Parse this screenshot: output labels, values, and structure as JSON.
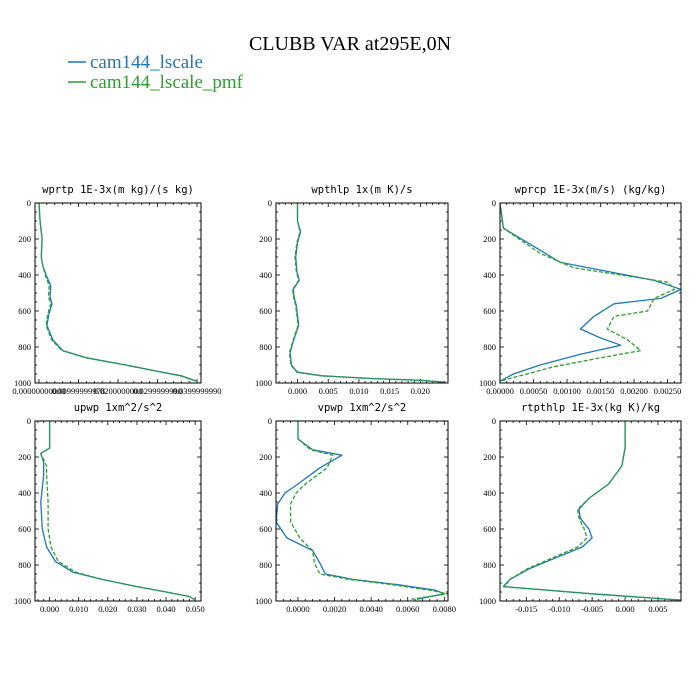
{
  "title": "CLUBB VAR at295E,0N",
  "legend": [
    {
      "label": "cam144_lscale",
      "color": "#1f77b4",
      "dash": "solid"
    },
    {
      "label": "cam144_lscale_pmf",
      "color": "#2ca02c",
      "dash": "dashed"
    }
  ],
  "chart_data": [
    {
      "type": "line",
      "title": "wprtp  1E-3x(m kg)/(s kg)",
      "xlim": [
        -0.001,
        0.041
      ],
      "ylim": [
        1000,
        0
      ],
      "xticks": [
        0,
        0.01,
        0.02,
        0.03,
        0.04
      ],
      "xticklabels": [
        "0.00000000000",
        "0.00999999978",
        "0.0200000000",
        "0.0299999990",
        "0.0399999990"
      ],
      "yticks": [
        0,
        200,
        400,
        600,
        800,
        1000
      ],
      "yticklabels": [
        "0",
        "200",
        "400",
        "600",
        "800",
        "1000"
      ],
      "series": [
        {
          "name": "cam144_lscale",
          "x": [
            0,
            0.0003,
            0.0008,
            0.0006,
            0.001,
            0.0018,
            0.003,
            0.0028,
            0.0033,
            0.0025,
            0.002,
            0.0035,
            0.006,
            0.012,
            0.022,
            0.03,
            0.036,
            0.04
          ],
          "y": [
            0,
            100,
            200,
            300,
            350,
            400,
            460,
            520,
            560,
            620,
            680,
            760,
            820,
            860,
            900,
            935,
            960,
            990
          ]
        },
        {
          "name": "cam144_lscale_pmf",
          "x": [
            0,
            0.0003,
            0.0008,
            0.0006,
            0.001,
            0.0016,
            0.0026,
            0.0024,
            0.003,
            0.0022,
            0.0018,
            0.0032,
            0.0058,
            0.0118,
            0.0218,
            0.0298,
            0.0358,
            0.0398
          ],
          "y": [
            0,
            100,
            200,
            300,
            350,
            400,
            460,
            520,
            560,
            620,
            680,
            760,
            820,
            860,
            900,
            935,
            960,
            990
          ]
        }
      ]
    },
    {
      "type": "line",
      "title": "wpthlp  1x(m K)/s",
      "xlim": [
        -0.0035,
        0.0245
      ],
      "ylim": [
        1000,
        0
      ],
      "xticks": [
        0,
        0.005,
        0.01,
        0.015,
        0.02
      ],
      "xticklabels": [
        "0.000",
        "0.005",
        "0.010",
        "0.015",
        "0.020"
      ],
      "yticks": [
        0,
        200,
        400,
        600,
        800,
        1000
      ],
      "yticklabels": [
        "0",
        "200",
        "400",
        "600",
        "800",
        "1000"
      ],
      "series": [
        {
          "name": "cam144_lscale",
          "x": [
            0.0,
            0.0,
            0.0005,
            0.0,
            -0.0003,
            -0.0001,
            0.0003,
            -0.0007,
            -0.0005,
            -0.0002,
            0.0002,
            -0.0006,
            -0.0012,
            -0.001,
            0.0,
            0.004,
            0.012,
            0.02,
            0.024
          ],
          "y": [
            0,
            100,
            160,
            220,
            300,
            380,
            430,
            480,
            530,
            570,
            680,
            760,
            830,
            900,
            940,
            960,
            975,
            985,
            995
          ]
        },
        {
          "name": "cam144_lscale_pmf",
          "x": [
            0.0,
            0.0,
            0.0004,
            -0.0001,
            -0.0004,
            -0.0002,
            0.0002,
            -0.0008,
            -0.0006,
            -0.0003,
            0.0001,
            -0.0007,
            -0.0013,
            -0.0011,
            -0.0001,
            0.0038,
            0.0118,
            0.0198,
            0.0238
          ],
          "y": [
            0,
            100,
            160,
            220,
            300,
            380,
            430,
            480,
            530,
            570,
            680,
            760,
            830,
            900,
            940,
            960,
            975,
            985,
            995
          ]
        }
      ]
    },
    {
      "type": "line",
      "title": "wprcp  1E-3x(m/s) (kg/kg)",
      "xlim": [
        0,
        0.0027
      ],
      "ylim": [
        1000,
        0
      ],
      "xticks": [
        0,
        0.0005,
        0.001,
        0.0015,
        0.002,
        0.0025
      ],
      "xticklabels": [
        "0.00000",
        "0.00050",
        "0.00100",
        "0.00150",
        "0.00200",
        "0.00250"
      ],
      "yticks": [
        0,
        200,
        400,
        600,
        800,
        1000
      ],
      "yticklabels": [
        "0",
        "200",
        "400",
        "600",
        "800",
        "1000"
      ],
      "series": [
        {
          "name": "cam144_lscale",
          "x": [
            0,
            5e-05,
            0.0005,
            0.0009,
            0.0016,
            0.0023,
            0.0027,
            0.0024,
            0.0017,
            0.0014,
            0.0012,
            0.0015,
            0.0018,
            0.0012,
            0.0006,
            0.0002,
            0.0
          ],
          "y": [
            0,
            140,
            240,
            330,
            380,
            430,
            480,
            530,
            560,
            630,
            700,
            750,
            790,
            840,
            900,
            950,
            990
          ]
        },
        {
          "name": "cam144_lscale_pmf",
          "x": [
            0,
            5e-05,
            0.0006,
            0.0011,
            0.0018,
            0.0025,
            0.0026,
            0.0023,
            0.0022,
            0.0017,
            0.0016,
            0.0019,
            0.0021,
            0.0015,
            0.0008,
            0.0003,
            0.0
          ],
          "y": [
            0,
            140,
            280,
            360,
            400,
            440,
            480,
            530,
            600,
            630,
            700,
            760,
            820,
            860,
            910,
            960,
            990
          ]
        }
      ]
    },
    {
      "type": "line",
      "title": "upwp  1xm^2/s^2",
      "xlim": [
        -0.005,
        0.052
      ],
      "ylim": [
        1000,
        0
      ],
      "xticks": [
        0,
        0.01,
        0.02,
        0.03,
        0.04,
        0.05
      ],
      "xticklabels": [
        "0.000",
        "0.010",
        "0.020",
        "0.030",
        "0.040",
        "0.050"
      ],
      "yticks": [
        0,
        200,
        400,
        600,
        800,
        1000
      ],
      "yticklabels": [
        "0",
        "200",
        "400",
        "600",
        "800",
        "1000"
      ],
      "series": [
        {
          "name": "cam144_lscale",
          "x": [
            0.0,
            0.0,
            -0.003,
            -0.002,
            -0.002,
            -0.003,
            -0.0025,
            -0.001,
            0.002,
            0.008,
            0.018,
            0.03,
            0.04,
            0.048,
            0.05
          ],
          "y": [
            0,
            150,
            180,
            230,
            300,
            450,
            600,
            700,
            780,
            840,
            880,
            920,
            950,
            975,
            995
          ]
        },
        {
          "name": "cam144_lscale_pmf",
          "x": [
            0.0,
            0.0,
            -0.003,
            -0.001,
            -0.001,
            -0.0005,
            -0.0005,
            0.0005,
            0.003,
            0.009,
            0.018,
            0.03,
            0.04,
            0.048,
            0.05
          ],
          "y": [
            0,
            150,
            180,
            250,
            300,
            450,
            600,
            700,
            780,
            840,
            880,
            920,
            950,
            975,
            995
          ]
        }
      ]
    },
    {
      "type": "line",
      "title": "vpwp  1xm^2/s^2",
      "xlim": [
        -0.0012,
        0.0082
      ],
      "ylim": [
        1000,
        0
      ],
      "xticks": [
        0,
        0.002,
        0.004,
        0.006,
        0.008
      ],
      "xticklabels": [
        "0.0000",
        "0.0020",
        "0.0040",
        "0.0060",
        "0.0080"
      ],
      "yticks": [
        0,
        200,
        400,
        600,
        800,
        1000
      ],
      "yticklabels": [
        "0",
        "200",
        "400",
        "600",
        "800",
        "1000"
      ],
      "series": [
        {
          "name": "cam144_lscale",
          "x": [
            0.0,
            0.0,
            0.0008,
            0.0024,
            0.0012,
            0.0,
            -0.0007,
            -0.0011,
            -0.0012,
            -0.0006,
            0.0008,
            0.0012,
            0.0015,
            0.003,
            0.0055,
            0.0075,
            0.008,
            0.0065
          ],
          "y": [
            0,
            100,
            160,
            190,
            260,
            350,
            400,
            460,
            560,
            650,
            720,
            790,
            850,
            880,
            910,
            940,
            960,
            990
          ]
        },
        {
          "name": "cam144_lscale_pmf",
          "x": [
            0.0,
            0.0,
            0.0007,
            0.0019,
            0.0016,
            0.0004,
            -0.0001,
            -0.0004,
            -0.0004,
            0.0001,
            0.0008,
            0.0009,
            0.0012,
            0.0028,
            0.0052,
            0.0072,
            0.0082,
            0.0062
          ],
          "y": [
            0,
            100,
            160,
            190,
            260,
            350,
            400,
            460,
            560,
            650,
            720,
            790,
            850,
            880,
            910,
            940,
            960,
            990
          ]
        }
      ]
    },
    {
      "type": "line",
      "title": "rtpthlp  1E-3x(kg K)/kg",
      "xlim": [
        -0.019,
        0.0085
      ],
      "ylim": [
        1000,
        0
      ],
      "xticks": [
        -0.015,
        -0.01,
        -0.005,
        0,
        0.005
      ],
      "xticklabels": [
        "-0.015",
        "-0.010",
        "-0.005",
        "0.000",
        "0.005"
      ],
      "yticks": [
        0,
        200,
        400,
        600,
        800,
        1000
      ],
      "yticklabels": [
        "0",
        "200",
        "400",
        "600",
        "800",
        "1000"
      ],
      "series": [
        {
          "name": "cam144_lscale",
          "x": [
            0.0,
            0.0,
            -0.0005,
            -0.0025,
            -0.0055,
            -0.007,
            -0.0068,
            -0.0055,
            -0.005,
            -0.0065,
            -0.0105,
            -0.0145,
            -0.0175,
            -0.0185,
            -0.005,
            0.0085
          ],
          "y": [
            0,
            150,
            250,
            350,
            430,
            490,
            540,
            600,
            650,
            700,
            760,
            820,
            880,
            920,
            960,
            995
          ]
        },
        {
          "name": "cam144_lscale_pmf",
          "x": [
            0.0,
            0.0,
            -0.0005,
            -0.0025,
            -0.0055,
            -0.0072,
            -0.007,
            -0.0062,
            -0.0058,
            -0.0072,
            -0.011,
            -0.0148,
            -0.0175,
            -0.0183,
            -0.005,
            0.0085
          ],
          "y": [
            0,
            150,
            250,
            350,
            430,
            490,
            540,
            600,
            650,
            700,
            760,
            820,
            880,
            920,
            960,
            995
          ]
        }
      ]
    }
  ]
}
